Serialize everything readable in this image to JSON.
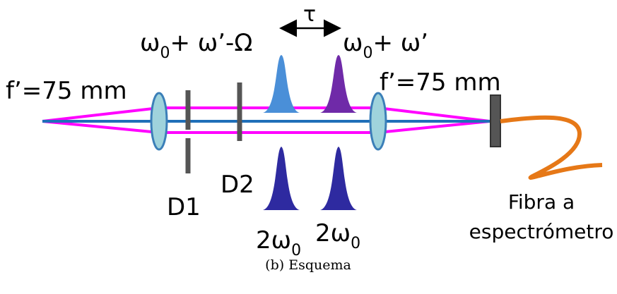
{
  "labels": {
    "lens_left": "f’=75 mm",
    "lens_right": "f’=75 mm",
    "freq_left": {
      "base": "ω",
      "sub": "0",
      "tail": "+ ω’-Ω"
    },
    "delay": "τ",
    "freq_right": {
      "base": "ω",
      "sub": "0",
      "tail": "+ ω’"
    },
    "d1": "D1",
    "d2": "D2",
    "sh_left": {
      "base": "2ω",
      "sub": "0"
    },
    "sh_right": {
      "base": "2ω",
      "sub": "0"
    },
    "fiber_line1": "Fibra a",
    "fiber_line2": "espectrómetro",
    "caption": "(b) Esquema"
  }
}
